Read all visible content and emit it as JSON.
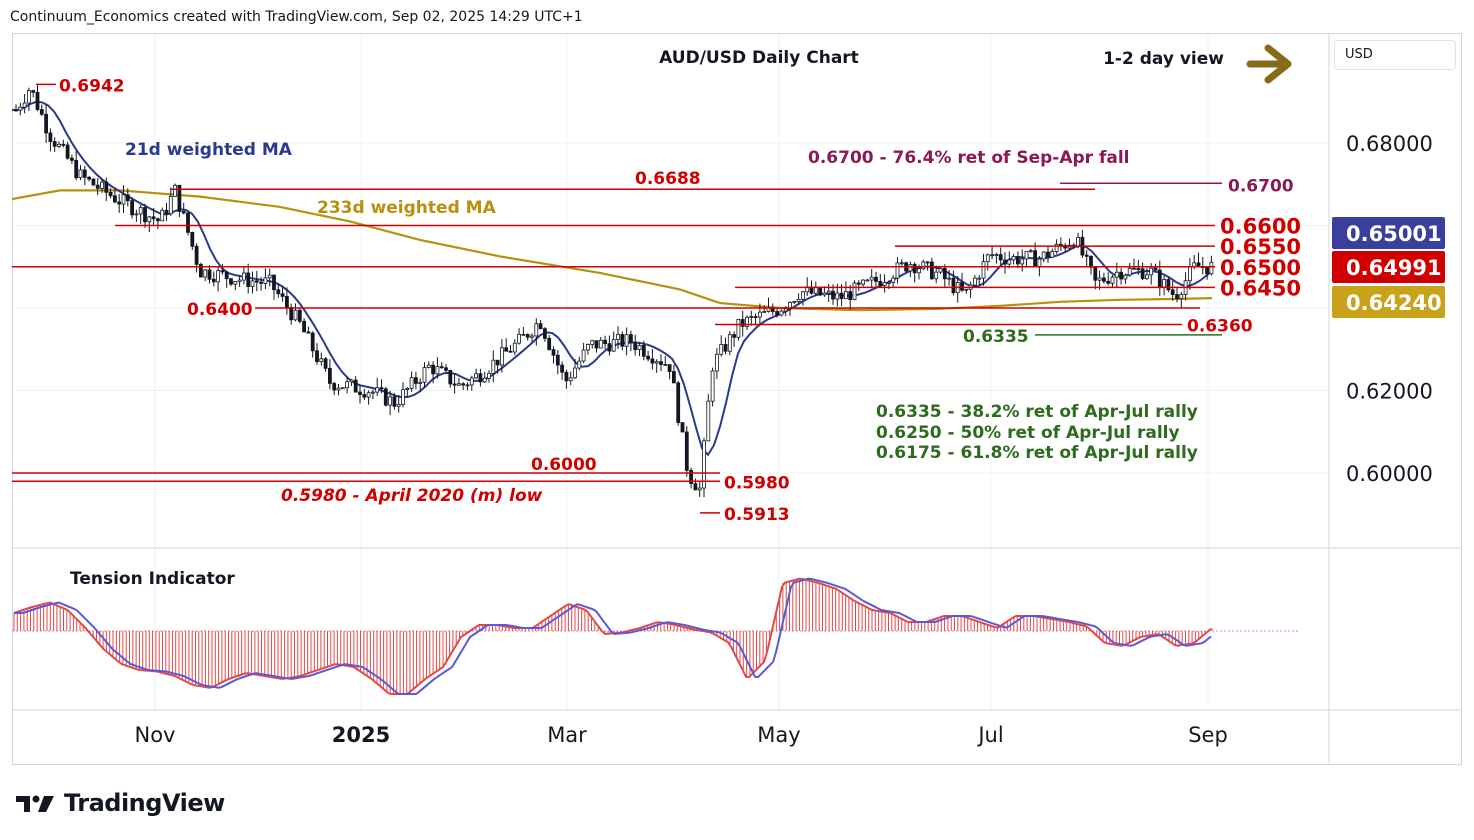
{
  "header": "Continuum_Economics created with TradingView.com, Sep 02, 2025 14:29 UTC+1",
  "currency": "USD",
  "brand": "TradingView",
  "chart_data": {
    "type": "candlestick",
    "title": "AUD/USD Daily Chart",
    "view_label": "1-2 day view",
    "x_ticks": [
      "Nov",
      "2025",
      "Mar",
      "May",
      "Jul",
      "Sep"
    ],
    "y_ticks": [
      "0.68000",
      "0.62000",
      "0.60000"
    ],
    "ylim": [
      0.585,
      0.705
    ],
    "price_badges": [
      {
        "label": "0.65001",
        "value": 0.65001,
        "color": "#3b3f9c"
      },
      {
        "label": "0.64991",
        "value": 0.64991,
        "color": "#d00000"
      },
      {
        "label": "0.64240",
        "value": 0.6424,
        "color": "#c9a21a"
      }
    ],
    "ma_labels": {
      "ma21": "21d weighted MA",
      "ma233": "233d weighted MA"
    },
    "levels": [
      {
        "label": "0.6942",
        "value": 0.6942
      },
      {
        "label": "0.6700",
        "value": 0.67
      },
      {
        "label": "0.6688",
        "value": 0.6688
      },
      {
        "label": "0.6600",
        "value": 0.66
      },
      {
        "label": "0.6550",
        "value": 0.655
      },
      {
        "label": "0.6500",
        "value": 0.65
      },
      {
        "label": "0.6450",
        "value": 0.645
      },
      {
        "label": "0.6400",
        "value": 0.64
      },
      {
        "label": "0.6360",
        "value": 0.636
      },
      {
        "label": "0.6335",
        "value": 0.6335
      },
      {
        "label": "0.6000",
        "value": 0.6
      },
      {
        "label": "0.5980",
        "value": 0.598
      },
      {
        "label": "0.5913",
        "value": 0.5913
      }
    ],
    "annotations": {
      "fib_top": "0.6700 - 76.4% ret of Sep-Apr fall",
      "fib1": "0.6335 - 38.2% ret of Apr-Jul rally",
      "fib2": "0.6250 - 50% ret of Apr-Jul rally",
      "fib3": "0.6175 - 61.8% ret of Apr-Jul rally",
      "april_low": "0.5980 - April 2020 (m) low"
    },
    "indicator": {
      "title": "Tension Indicator",
      "values": [
        0.6,
        0.8,
        0.95,
        0.7,
        0.1,
        -0.6,
        -1.1,
        -1.3,
        -1.35,
        -1.5,
        -1.8,
        -1.9,
        -1.6,
        -1.4,
        -1.5,
        -1.6,
        -1.5,
        -1.3,
        -1.1,
        -1.2,
        -1.6,
        -2.1,
        -2.1,
        -1.6,
        -1.2,
        -0.2,
        0.2,
        0.2,
        0.1,
        0.1,
        0.5,
        0.9,
        0.7,
        -0.1,
        -0.05,
        0.1,
        0.3,
        0.2,
        0.05,
        -0.05,
        -0.4,
        -1.6,
        -1.0,
        1.6,
        1.75,
        1.6,
        1.4,
        1.0,
        0.7,
        0.6,
        0.3,
        0.3,
        0.5,
        0.5,
        0.3,
        0.1,
        0.5,
        0.5,
        0.4,
        0.3,
        0.15,
        -0.4,
        -0.5,
        -0.2,
        -0.1,
        -0.5,
        -0.4,
        0.1
      ]
    }
  }
}
